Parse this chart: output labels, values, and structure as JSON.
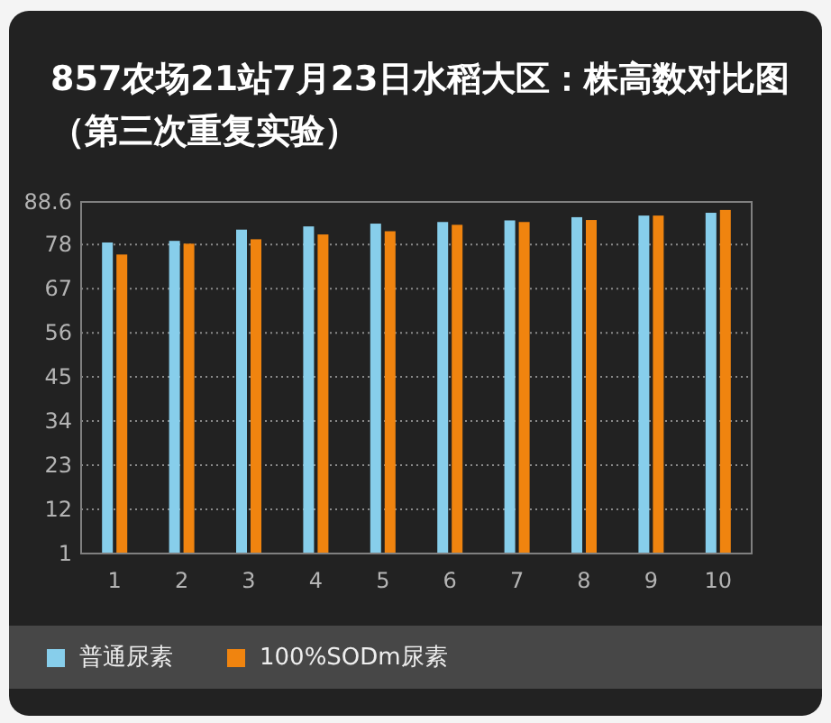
{
  "chart_data": {
    "type": "bar",
    "title": "857农场21站7月23日水稻大区：株高数对比图（第三次重复实验）",
    "categories": [
      "1",
      "2",
      "3",
      "4",
      "5",
      "6",
      "7",
      "8",
      "9",
      "10"
    ],
    "series": [
      {
        "name": "普通尿素",
        "color": "#87ceeb",
        "values": [
          78.5,
          78.9,
          81.7,
          82.5,
          83.2,
          83.6,
          84.0,
          84.8,
          85.2,
          85.9
        ]
      },
      {
        "name": "100%SODm尿素",
        "color": "#f0840f",
        "values": [
          75.5,
          78.2,
          79.3,
          80.5,
          81.3,
          82.9,
          83.6,
          84.1,
          85.2,
          86.6
        ]
      }
    ],
    "ylim": [
      1,
      88.6
    ],
    "yticks": [
      1,
      12,
      23,
      34,
      45,
      56,
      67,
      78,
      88.6
    ],
    "grid": "y",
    "legend": "bottom"
  }
}
